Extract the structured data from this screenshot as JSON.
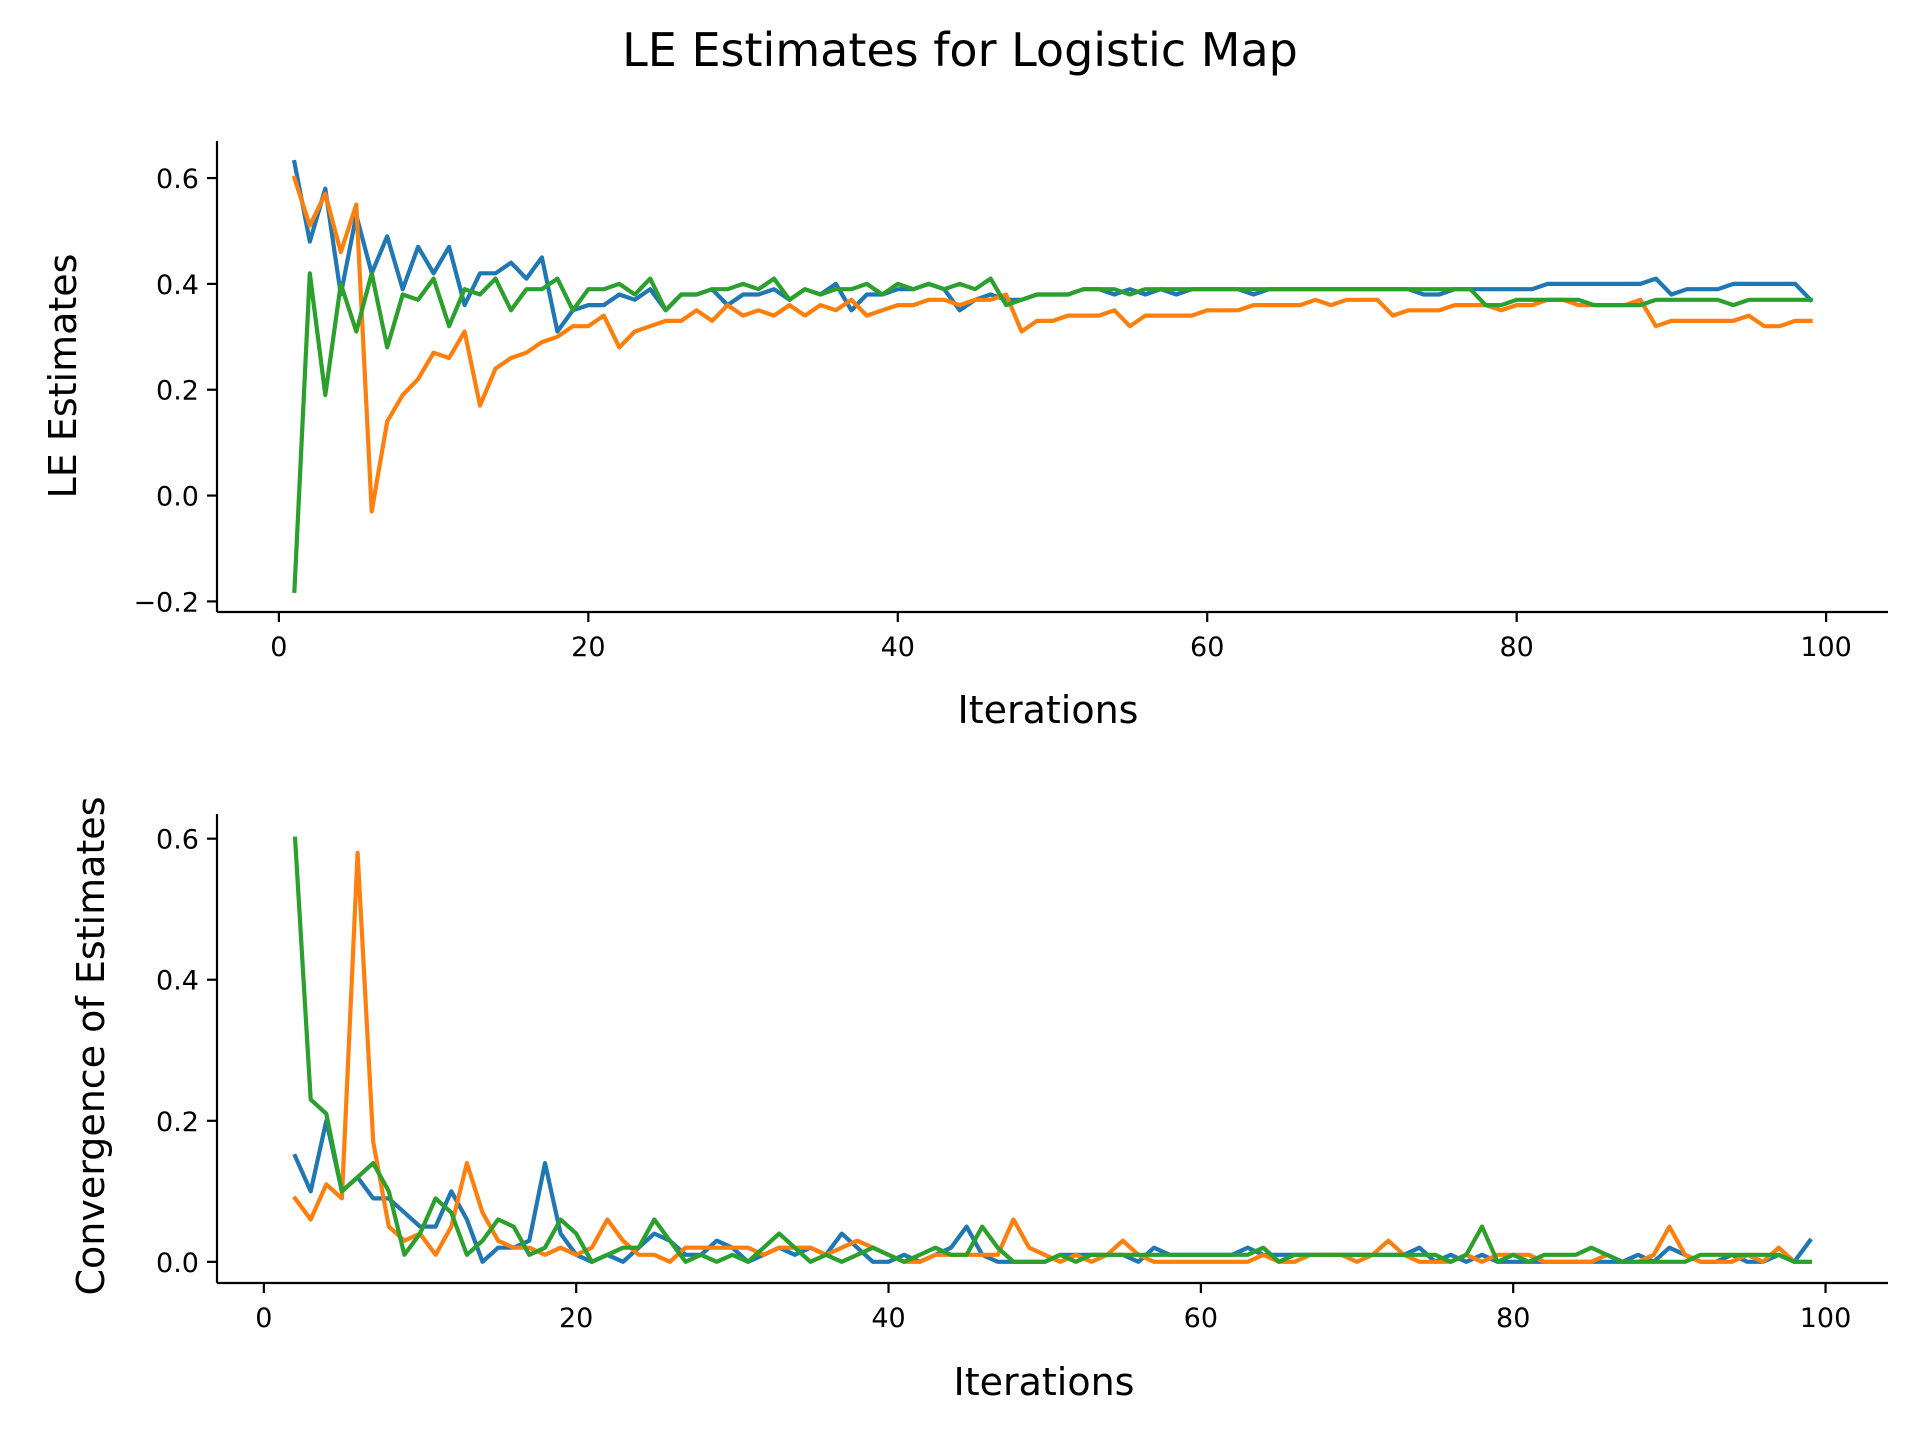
{
  "figure": {
    "title": "LE Estimates for Logistic Map"
  },
  "colors": {
    "s1": "#1f77b4",
    "s2": "#ff7f0e",
    "s3": "#2ca02c"
  },
  "chart_data": [
    {
      "type": "line",
      "title": "",
      "xlabel": "Iterations",
      "ylabel": "LE Estimates",
      "xlim": [
        -4,
        104
      ],
      "ylim": [
        -0.22,
        0.67
      ],
      "xticks": [
        0,
        20,
        40,
        60,
        80,
        100
      ],
      "xtick_labels": [
        "0",
        "20",
        "40",
        "60",
        "80",
        "100"
      ],
      "yticks": [
        -0.2,
        0.0,
        0.2,
        0.4,
        0.6
      ],
      "ytick_labels": [
        "−0.2",
        "0.0",
        "0.2",
        "0.4",
        "0.6"
      ],
      "grid": false,
      "legend": "none",
      "series": [
        {
          "color": "#1f77b4",
          "x_start": 1,
          "values": [
            0.63,
            0.48,
            0.58,
            0.38,
            0.53,
            0.42,
            0.49,
            0.39,
            0.47,
            0.42,
            0.47,
            0.36,
            0.42,
            0.42,
            0.44,
            0.41,
            0.45,
            0.31,
            0.35,
            0.36,
            0.36,
            0.38,
            0.37,
            0.39,
            0.35,
            0.38,
            0.38,
            0.39,
            0.36,
            0.38,
            0.38,
            0.39,
            0.37,
            0.39,
            0.38,
            0.4,
            0.35,
            0.38,
            0.38,
            0.39,
            0.39,
            0.4,
            0.39,
            0.35,
            0.37,
            0.38,
            0.37,
            0.37,
            0.38,
            0.38,
            0.38,
            0.39,
            0.39,
            0.38,
            0.39,
            0.38,
            0.39,
            0.38,
            0.39,
            0.39,
            0.39,
            0.39,
            0.38,
            0.39,
            0.39,
            0.39,
            0.39,
            0.39,
            0.39,
            0.39,
            0.39,
            0.39,
            0.39,
            0.38,
            0.38,
            0.39,
            0.39,
            0.39,
            0.39,
            0.39,
            0.39,
            0.4,
            0.4,
            0.4,
            0.4,
            0.4,
            0.4,
            0.4,
            0.41,
            0.38,
            0.39,
            0.39,
            0.39,
            0.4,
            0.4,
            0.4,
            0.4,
            0.4,
            0.37
          ]
        },
        {
          "color": "#ff7f0e",
          "x_start": 1,
          "values": [
            0.6,
            0.51,
            0.57,
            0.46,
            0.55,
            -0.03,
            0.14,
            0.19,
            0.22,
            0.27,
            0.26,
            0.31,
            0.17,
            0.24,
            0.26,
            0.27,
            0.29,
            0.3,
            0.32,
            0.32,
            0.34,
            0.28,
            0.31,
            0.32,
            0.33,
            0.33,
            0.35,
            0.33,
            0.36,
            0.34,
            0.35,
            0.34,
            0.36,
            0.34,
            0.36,
            0.35,
            0.37,
            0.34,
            0.35,
            0.36,
            0.36,
            0.37,
            0.37,
            0.36,
            0.37,
            0.37,
            0.38,
            0.31,
            0.33,
            0.33,
            0.34,
            0.34,
            0.34,
            0.35,
            0.32,
            0.34,
            0.34,
            0.34,
            0.34,
            0.35,
            0.35,
            0.35,
            0.36,
            0.36,
            0.36,
            0.36,
            0.37,
            0.36,
            0.37,
            0.37,
            0.37,
            0.34,
            0.35,
            0.35,
            0.35,
            0.36,
            0.36,
            0.36,
            0.35,
            0.36,
            0.36,
            0.37,
            0.37,
            0.36,
            0.36,
            0.36,
            0.36,
            0.37,
            0.32,
            0.33,
            0.33,
            0.33,
            0.33,
            0.33,
            0.34,
            0.32,
            0.32,
            0.33,
            0.33
          ]
        },
        {
          "color": "#2ca02c",
          "x_start": 1,
          "values": [
            -0.18,
            0.42,
            0.19,
            0.4,
            0.31,
            0.42,
            0.28,
            0.38,
            0.37,
            0.41,
            0.32,
            0.39,
            0.38,
            0.41,
            0.35,
            0.39,
            0.39,
            0.41,
            0.35,
            0.39,
            0.39,
            0.4,
            0.38,
            0.41,
            0.35,
            0.38,
            0.38,
            0.39,
            0.39,
            0.4,
            0.39,
            0.41,
            0.37,
            0.39,
            0.38,
            0.39,
            0.39,
            0.4,
            0.38,
            0.4,
            0.39,
            0.4,
            0.39,
            0.4,
            0.39,
            0.41,
            0.36,
            0.37,
            0.38,
            0.38,
            0.38,
            0.39,
            0.39,
            0.39,
            0.38,
            0.39,
            0.39,
            0.39,
            0.39,
            0.39,
            0.39,
            0.39,
            0.39,
            0.39,
            0.39,
            0.39,
            0.39,
            0.39,
            0.39,
            0.39,
            0.39,
            0.39,
            0.39,
            0.39,
            0.39,
            0.39,
            0.39,
            0.36,
            0.36,
            0.37,
            0.37,
            0.37,
            0.37,
            0.37,
            0.36,
            0.36,
            0.36,
            0.36,
            0.37,
            0.37,
            0.37,
            0.37,
            0.37,
            0.36,
            0.37,
            0.37,
            0.37,
            0.37,
            0.37
          ]
        }
      ]
    },
    {
      "type": "line",
      "title": "",
      "xlabel": "Iterations",
      "ylabel": "Convergence of Estimates",
      "xlim": [
        -3,
        104
      ],
      "ylim": [
        -0.03,
        0.635
      ],
      "xticks": [
        0,
        20,
        40,
        60,
        80,
        100
      ],
      "xtick_labels": [
        "0",
        "20",
        "40",
        "60",
        "80",
        "100"
      ],
      "yticks": [
        0.0,
        0.2,
        0.4,
        0.6
      ],
      "ytick_labels": [
        "0.0",
        "0.2",
        "0.4",
        "0.6"
      ],
      "grid": false,
      "legend": "none",
      "series": [
        {
          "color": "#1f77b4",
          "x_start": 2,
          "values": [
            0.15,
            0.1,
            0.2,
            0.1,
            0.12,
            0.09,
            0.09,
            0.07,
            0.05,
            0.05,
            0.1,
            0.06,
            0.0,
            0.02,
            0.02,
            0.03,
            0.14,
            0.04,
            0.01,
            0.0,
            0.01,
            0.0,
            0.02,
            0.04,
            0.03,
            0.01,
            0.01,
            0.03,
            0.02,
            0.0,
            0.01,
            0.02,
            0.01,
            0.02,
            0.01,
            0.04,
            0.02,
            0.0,
            0.0,
            0.01,
            0.0,
            0.01,
            0.02,
            0.05,
            0.01,
            0.0,
            0.0,
            0.0,
            0.0,
            0.01,
            0.01,
            0.01,
            0.01,
            0.01,
            0.0,
            0.02,
            0.01,
            0.01,
            0.01,
            0.01,
            0.01,
            0.02,
            0.01,
            0.01,
            0.01,
            0.01,
            0.01,
            0.01,
            0.01,
            0.01,
            0.01,
            0.01,
            0.02,
            0.0,
            0.01,
            0.0,
            0.01,
            0.0,
            0.0,
            0.0,
            0.0,
            0.0,
            0.0,
            0.0,
            0.0,
            0.0,
            0.01,
            0.0,
            0.02,
            0.01,
            0.0,
            0.0,
            0.01,
            0.0,
            0.0,
            0.01,
            0.0,
            0.03
          ]
        },
        {
          "color": "#ff7f0e",
          "x_start": 2,
          "values": [
            0.09,
            0.06,
            0.11,
            0.09,
            0.58,
            0.17,
            0.05,
            0.03,
            0.04,
            0.01,
            0.05,
            0.14,
            0.07,
            0.03,
            0.02,
            0.02,
            0.01,
            0.02,
            0.01,
            0.02,
            0.06,
            0.03,
            0.01,
            0.01,
            0.0,
            0.02,
            0.02,
            0.02,
            0.02,
            0.02,
            0.01,
            0.02,
            0.02,
            0.02,
            0.01,
            0.02,
            0.03,
            0.02,
            0.01,
            0.0,
            0.0,
            0.01,
            0.01,
            0.01,
            0.01,
            0.01,
            0.06,
            0.02,
            0.01,
            0.0,
            0.01,
            0.0,
            0.01,
            0.03,
            0.01,
            0.0,
            0.0,
            0.0,
            0.0,
            0.0,
            0.0,
            0.0,
            0.01,
            0.0,
            0.0,
            0.01,
            0.01,
            0.01,
            0.0,
            0.01,
            0.03,
            0.01,
            0.0,
            0.0,
            0.0,
            0.01,
            0.0,
            0.01,
            0.01,
            0.01,
            0.0,
            0.0,
            0.0,
            0.0,
            0.01,
            0.0,
            0.0,
            0.01,
            0.05,
            0.01,
            0.0,
            0.0,
            0.0,
            0.01,
            0.0,
            0.02,
            0.0,
            0.0
          ]
        },
        {
          "color": "#2ca02c",
          "x_start": 2,
          "values": [
            0.6,
            0.23,
            0.21,
            0.1,
            0.12,
            0.14,
            0.1,
            0.01,
            0.04,
            0.09,
            0.07,
            0.01,
            0.03,
            0.06,
            0.05,
            0.01,
            0.02,
            0.06,
            0.04,
            0.0,
            0.01,
            0.02,
            0.02,
            0.06,
            0.03,
            0.0,
            0.01,
            0.0,
            0.01,
            0.0,
            0.02,
            0.04,
            0.02,
            0.0,
            0.01,
            0.0,
            0.01,
            0.02,
            0.01,
            0.0,
            0.01,
            0.02,
            0.01,
            0.01,
            0.05,
            0.02,
            0.0,
            0.0,
            0.0,
            0.01,
            0.0,
            0.01,
            0.01,
            0.01,
            0.01,
            0.01,
            0.01,
            0.01,
            0.01,
            0.01,
            0.01,
            0.01,
            0.02,
            0.0,
            0.01,
            0.01,
            0.01,
            0.01,
            0.01,
            0.01,
            0.01,
            0.01,
            0.01,
            0.01,
            0.0,
            0.01,
            0.05,
            0.0,
            0.01,
            0.0,
            0.01,
            0.01,
            0.01,
            0.02,
            0.01,
            0.0,
            0.0,
            0.0,
            0.0,
            0.0,
            0.01,
            0.01,
            0.01,
            0.01,
            0.01,
            0.01,
            0.0,
            0.0
          ]
        }
      ]
    }
  ]
}
